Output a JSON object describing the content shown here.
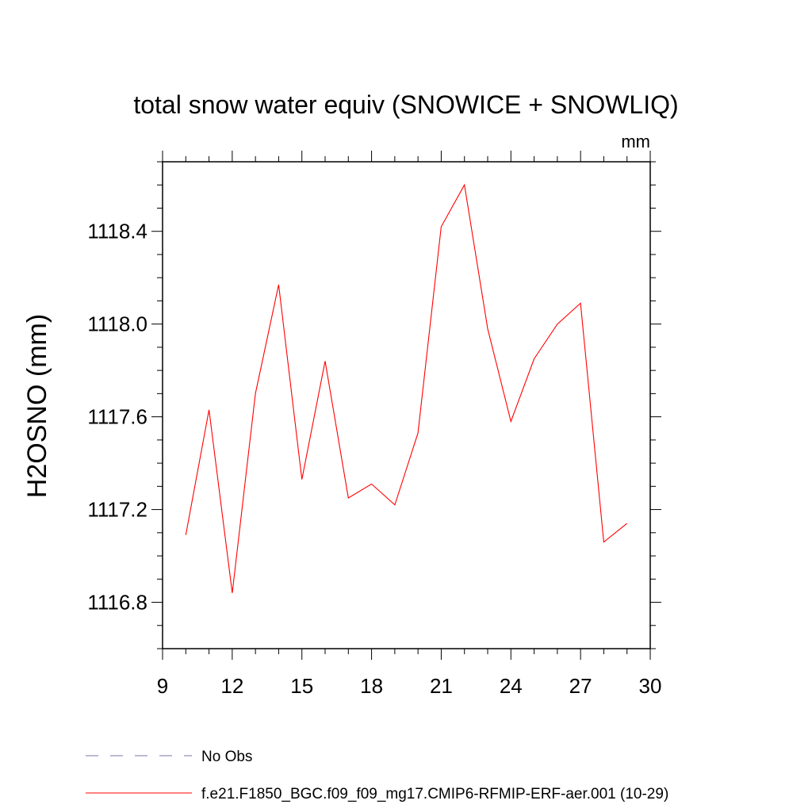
{
  "chart_data": {
    "type": "line",
    "title": "total snow water equiv (SNOWICE + SNOWLIQ)",
    "units_label": "mm",
    "ylabel": "H2OSNO  (mm)",
    "xlabel": "",
    "xlim": [
      9,
      30
    ],
    "ylim": [
      1116.6,
      1118.7
    ],
    "xticks": [
      9,
      12,
      15,
      18,
      21,
      24,
      27,
      30
    ],
    "xtick_labels": [
      "9",
      "12",
      "15",
      "18",
      "21",
      "24",
      "27",
      "30"
    ],
    "yticks": [
      1116.8,
      1117.2,
      1117.6,
      1118.0,
      1118.4
    ],
    "ytick_labels": [
      "1116.8",
      "1117.2",
      "1117.6",
      "1118.0",
      "1118.4"
    ],
    "grid": false,
    "legend_position": "bottom",
    "series": [
      {
        "name": "f.e21.F1850_BGC.f09_f09_mg17.CMIP6-RFMIP-ERF-aer.001 (10-29)",
        "color": "#ff0000",
        "style": "solid",
        "x": [
          10,
          11,
          12,
          13,
          14,
          15,
          16,
          17,
          18,
          19,
          20,
          21,
          22,
          23,
          24,
          25,
          26,
          27,
          28,
          29
        ],
        "y": [
          1117.09,
          1117.63,
          1116.84,
          1117.7,
          1118.17,
          1117.33,
          1117.84,
          1117.25,
          1117.31,
          1117.22,
          1117.53,
          1118.42,
          1118.6,
          1117.98,
          1117.58,
          1117.85,
          1118.0,
          1118.09,
          1117.06,
          1117.14
        ]
      }
    ],
    "legend": [
      {
        "label": "No Obs",
        "color": "#8070a8",
        "style": "dashed"
      },
      {
        "label": "f.e21.F1850_BGC.f09_f09_mg17.CMIP6-RFMIP-ERF-aer.001 (10-29)",
        "color": "#ff0000",
        "style": "solid"
      }
    ]
  }
}
